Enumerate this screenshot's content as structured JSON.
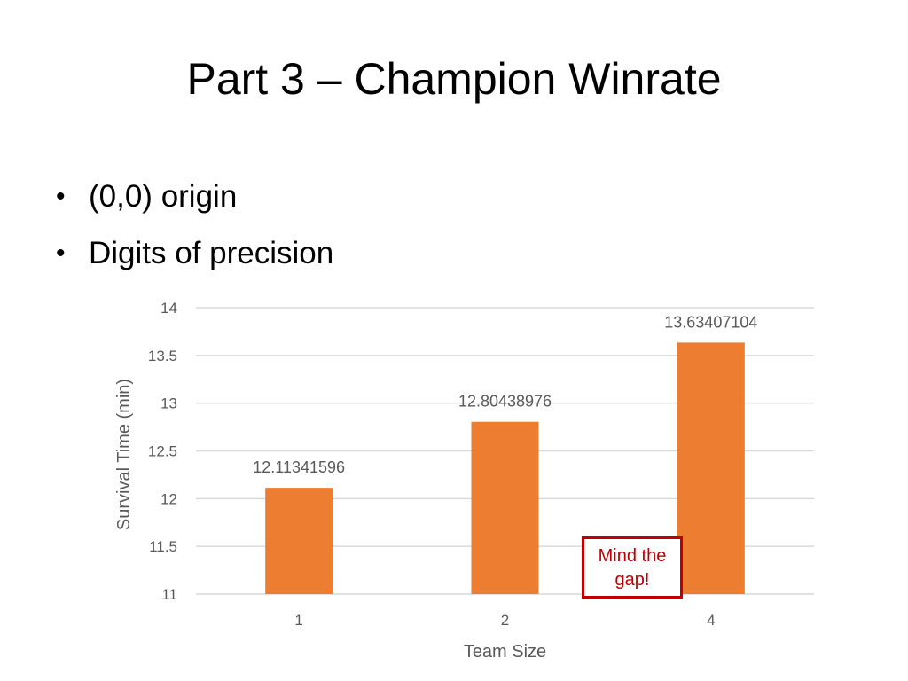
{
  "slide": {
    "title": "Part 3 –  Champion Winrate",
    "bullets": [
      "(0,0) origin",
      "Digits of precision"
    ],
    "bullet_glyph": "•"
  },
  "callout": {
    "text": "Mind the gap!",
    "color": "#c00000"
  },
  "chart_data": {
    "type": "bar",
    "categories": [
      "1",
      "2",
      "4"
    ],
    "values": [
      12.11341596,
      12.80438976,
      13.63407104
    ],
    "data_labels": [
      "12.11341596",
      "12.80438976",
      "13.63407104"
    ],
    "title": "",
    "xlabel": "Team Size",
    "ylabel": "Survival Time (min)",
    "ylim": [
      11,
      14
    ],
    "yticks": [
      "11",
      "11.5",
      "12",
      "12.5",
      "13",
      "13.5",
      "14"
    ],
    "grid": true,
    "bar_color": "#ed7d31",
    "grid_color": "#d9d9d9",
    "text_color": "#595959"
  }
}
